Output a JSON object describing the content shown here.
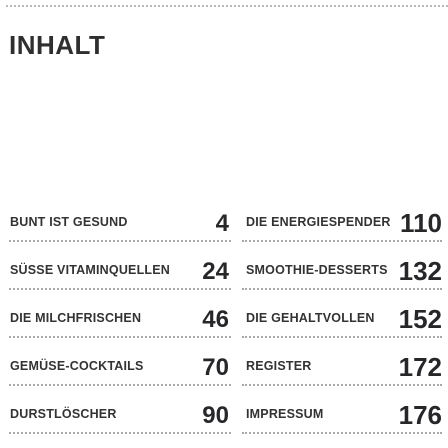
{
  "title": "INHALT",
  "left_entries": [
    {
      "label": "BUNT IST GESUND",
      "page": "4"
    },
    {
      "label": "SÜSSE VITAMINQUELLEN",
      "page": "24"
    },
    {
      "label": "DIE MILCHFRISCHEN",
      "page": "46"
    },
    {
      "label": "GEMÜSE-COCKTAILS",
      "page": "70"
    },
    {
      "label": "DURSTLÖSCHER",
      "page": "90"
    }
  ],
  "right_entries": [
    {
      "label": "DIE ENERGIESPENDER",
      "page": "110"
    },
    {
      "label": "SMOOTHIE-DESSERTS",
      "page": "132"
    },
    {
      "label": "DIE GEHALTVOLLEN",
      "page": "152"
    },
    {
      "label": "REGISTER",
      "page": "172"
    },
    {
      "label": "IMPRESSUM",
      "page": "176"
    }
  ]
}
